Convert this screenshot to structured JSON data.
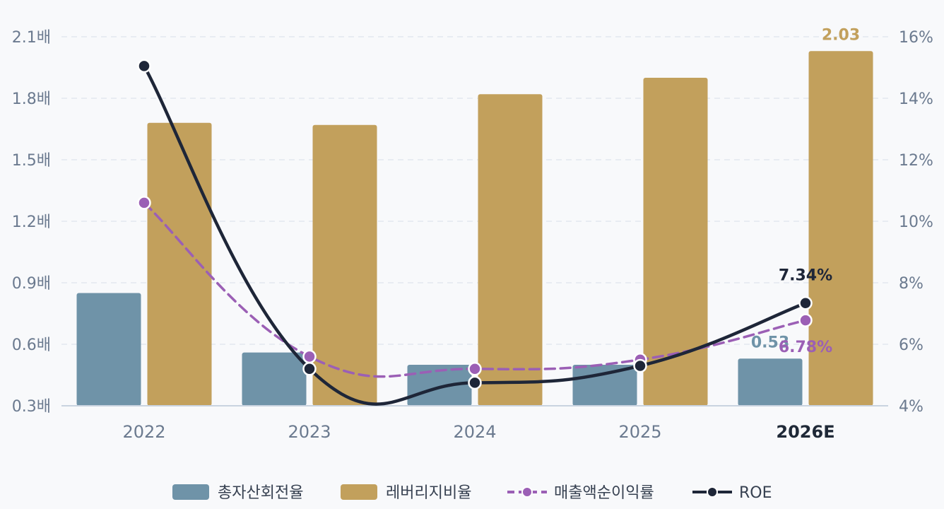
{
  "chart_data": {
    "type": "bar",
    "categories": [
      "2022",
      "2023",
      "2024",
      "2025",
      "2026E"
    ],
    "highlight_category": "2026E",
    "left_axis": {
      "ticks": [
        "0.3배",
        "0.6배",
        "0.9배",
        "1.2배",
        "1.5배",
        "1.8배",
        "2.1배"
      ],
      "range": [
        0.3,
        2.1
      ]
    },
    "right_axis": {
      "ticks": [
        "4%",
        "6%",
        "8%",
        "10%",
        "12%",
        "14%",
        "16%"
      ],
      "range": [
        4,
        16
      ]
    },
    "grid": true,
    "legend_position": "bottom",
    "series": [
      {
        "name": "총자산회전율",
        "kind": "bar",
        "axis": "left",
        "color": "#6f93a8",
        "values": [
          0.85,
          0.56,
          0.5,
          0.5,
          0.53
        ],
        "last_label": "0.53"
      },
      {
        "name": "레버리지비율",
        "kind": "bar",
        "axis": "left",
        "color": "#c2a05c",
        "values": [
          1.68,
          1.67,
          1.82,
          1.9,
          2.03
        ],
        "last_label": "2.03"
      },
      {
        "name": "매출액순이익률",
        "kind": "line",
        "style": "dashed",
        "axis": "right",
        "color": "#9b5fb5",
        "values": [
          10.6,
          5.6,
          5.2,
          5.5,
          6.78
        ],
        "last_label": "6.78%"
      },
      {
        "name": "ROE",
        "kind": "line",
        "style": "solid",
        "axis": "right",
        "color": "#1e2638",
        "values": [
          15.05,
          5.2,
          4.75,
          5.3,
          7.34
        ],
        "last_label": "7.34%"
      }
    ]
  }
}
